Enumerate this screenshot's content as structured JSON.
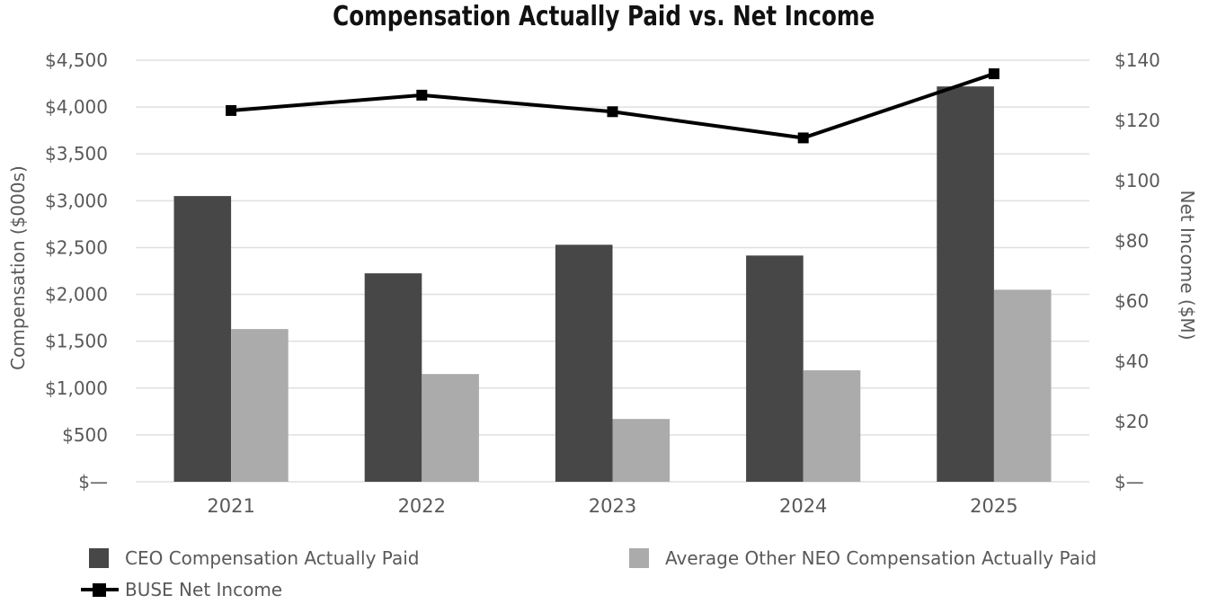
{
  "chart_data": {
    "type": "combo-bar-line",
    "title": "Compensation Actually Paid vs. Net Income",
    "categories": [
      "2021",
      "2022",
      "2023",
      "2024",
      "2025"
    ],
    "bar_series": [
      {
        "name": "CEO Compensation Actually Paid",
        "color": "#474747",
        "axis": "left",
        "values": [
          3050,
          2225,
          2530,
          2415,
          4220
        ]
      },
      {
        "name": "Average Other NEO Compensation Actually Paid",
        "color": "#ABABAB",
        "axis": "left",
        "values": [
          1630,
          1150,
          670,
          1190,
          2050
        ]
      }
    ],
    "line_series": [
      {
        "name": "BUSE Net Income",
        "color": "#000000",
        "marker": "square",
        "axis": "right",
        "values": [
          123.3,
          128.4,
          122.9,
          114.2,
          135.5
        ]
      }
    ],
    "left_axis": {
      "title": "Compensation ($000s)",
      "min": 0,
      "max": 4500,
      "step": 500,
      "tick_labels": [
        "$—",
        "$500",
        "$1,000",
        "$1,500",
        "$2,000",
        "$2,500",
        "$3,000",
        "$3,500",
        "$4,000",
        "$4,500"
      ]
    },
    "right_axis": {
      "title": "Net Income ($M)",
      "min": 0,
      "max": 140,
      "step": 20,
      "tick_labels": [
        "$—",
        "$20",
        "$40",
        "$60",
        "$80",
        "$100",
        "$120",
        "$140"
      ]
    },
    "grid": "horizontal",
    "legend_position": "bottom-left",
    "colors": {
      "gridline": "#e0e0e0",
      "axis_text": "#595959",
      "title_text": "#111111",
      "background": "#ffffff"
    }
  }
}
